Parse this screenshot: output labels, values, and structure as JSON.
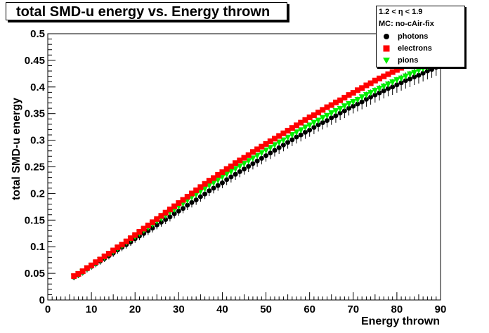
{
  "chart_data": {
    "type": "scatter",
    "title": "total SMD-u energy vs. Energy thrown",
    "xlabel": "Energy thrown",
    "ylabel": "total SMD-u energy",
    "xlim": [
      0,
      90
    ],
    "ylim": [
      0,
      0.5
    ],
    "x_ticks": [
      "0",
      "10",
      "20",
      "30",
      "40",
      "50",
      "60",
      "70",
      "80",
      "90"
    ],
    "y_ticks": [
      "0",
      "0.05",
      "0.1",
      "0.15",
      "0.2",
      "0.25",
      "0.3",
      "0.35",
      "0.4",
      "0.45",
      "0.5"
    ],
    "grid": false,
    "legend_position": "top-right",
    "legend_header": [
      "1.2 < η < 1.9",
      "MC: no-cAir-fix"
    ],
    "series": [
      {
        "name": "photons",
        "marker": "circle",
        "color": "#000000",
        "x": [
          6,
          7,
          8,
          9,
          10,
          11,
          12,
          13,
          14,
          15,
          16,
          17,
          18,
          19,
          20,
          21,
          22,
          23,
          24,
          25,
          26,
          27,
          28,
          29,
          30,
          31,
          32,
          33,
          34,
          35,
          36,
          37,
          38,
          39,
          40,
          41,
          42,
          43,
          44,
          45,
          46,
          47,
          48,
          49,
          50,
          51,
          52,
          53,
          54,
          55,
          56,
          57,
          58,
          59,
          60,
          61,
          62,
          63,
          64,
          65,
          66,
          67,
          68,
          69,
          70,
          71,
          72,
          73,
          74,
          75,
          76,
          77,
          78,
          79,
          80,
          81,
          82,
          83,
          84,
          85,
          86,
          87,
          88,
          89
        ],
        "y": [
          0.043,
          0.047,
          0.052,
          0.058,
          0.063,
          0.068,
          0.073,
          0.078,
          0.083,
          0.088,
          0.094,
          0.099,
          0.104,
          0.109,
          0.115,
          0.12,
          0.125,
          0.13,
          0.135,
          0.141,
          0.146,
          0.151,
          0.156,
          0.162,
          0.167,
          0.172,
          0.178,
          0.183,
          0.188,
          0.194,
          0.199,
          0.205,
          0.21,
          0.215,
          0.22,
          0.226,
          0.231,
          0.236,
          0.241,
          0.246,
          0.251,
          0.256,
          0.261,
          0.266,
          0.271,
          0.276,
          0.281,
          0.286,
          0.291,
          0.296,
          0.301,
          0.306,
          0.31,
          0.315,
          0.319,
          0.324,
          0.329,
          0.333,
          0.337,
          0.342,
          0.346,
          0.351,
          0.355,
          0.36,
          0.364,
          0.368,
          0.372,
          0.377,
          0.381,
          0.385,
          0.389,
          0.393,
          0.397,
          0.4,
          0.404,
          0.408,
          0.412,
          0.415,
          0.419,
          0.422,
          0.426,
          0.43,
          0.433,
          0.437
        ]
      },
      {
        "name": "electrons",
        "marker": "square",
        "color": "#ff0000",
        "x": [
          6,
          7,
          8,
          9,
          10,
          11,
          12,
          13,
          14,
          15,
          16,
          17,
          18,
          19,
          20,
          21,
          22,
          23,
          24,
          25,
          26,
          27,
          28,
          29,
          30,
          31,
          32,
          33,
          34,
          35,
          36,
          37,
          38,
          39,
          40,
          41,
          42,
          43,
          44,
          45,
          46,
          47,
          48,
          49,
          50,
          51,
          52,
          53,
          54,
          55,
          56,
          57,
          58,
          59,
          60,
          61,
          62,
          63,
          64,
          65,
          66,
          67,
          68,
          69,
          70,
          71,
          72,
          73,
          74,
          75,
          76,
          77,
          78,
          79,
          80,
          81,
          82,
          83,
          84,
          85,
          86,
          87,
          88,
          89
        ],
        "y": [
          0.045,
          0.049,
          0.054,
          0.06,
          0.065,
          0.071,
          0.076,
          0.082,
          0.087,
          0.093,
          0.099,
          0.104,
          0.11,
          0.116,
          0.122,
          0.128,
          0.134,
          0.14,
          0.146,
          0.152,
          0.158,
          0.164,
          0.17,
          0.176,
          0.182,
          0.188,
          0.194,
          0.2,
          0.206,
          0.212,
          0.218,
          0.224,
          0.229,
          0.235,
          0.24,
          0.246,
          0.251,
          0.257,
          0.262,
          0.267,
          0.272,
          0.278,
          0.283,
          0.288,
          0.293,
          0.298,
          0.303,
          0.308,
          0.313,
          0.318,
          0.323,
          0.328,
          0.333,
          0.338,
          0.343,
          0.347,
          0.352,
          0.357,
          0.362,
          0.366,
          0.371,
          0.375,
          0.38,
          0.385,
          0.389,
          0.394,
          0.398,
          0.403,
          0.407,
          0.412,
          0.416,
          0.42,
          0.424,
          0.428,
          0.432,
          0.436,
          0.44,
          0.443,
          0.447,
          0.45,
          0.453,
          0.456,
          0.459,
          0.462
        ]
      },
      {
        "name": "pions",
        "marker": "triangle-down",
        "color": "#00ee00",
        "x": [
          6,
          7,
          8,
          9,
          10,
          11,
          12,
          13,
          14,
          15,
          16,
          17,
          18,
          19,
          20,
          21,
          22,
          23,
          24,
          25,
          26,
          27,
          28,
          29,
          30,
          31,
          32,
          33,
          34,
          35,
          36,
          37,
          38,
          39,
          40,
          41,
          42,
          43,
          44,
          45,
          46,
          47,
          48,
          49,
          50,
          51,
          52,
          53,
          54,
          55,
          56,
          57,
          58,
          59,
          60,
          61,
          62,
          63,
          64,
          65,
          66,
          67,
          68,
          69,
          70,
          71,
          72,
          73,
          74,
          75,
          76,
          77,
          78,
          79,
          80,
          81,
          82,
          83,
          84,
          85,
          86,
          87,
          88,
          89
        ],
        "y": [
          0.044,
          0.048,
          0.053,
          0.059,
          0.064,
          0.069,
          0.075,
          0.08,
          0.086,
          0.091,
          0.097,
          0.102,
          0.108,
          0.114,
          0.119,
          0.125,
          0.131,
          0.136,
          0.142,
          0.148,
          0.153,
          0.159,
          0.165,
          0.17,
          0.176,
          0.181,
          0.187,
          0.193,
          0.198,
          0.204,
          0.209,
          0.215,
          0.22,
          0.225,
          0.231,
          0.236,
          0.241,
          0.246,
          0.251,
          0.256,
          0.261,
          0.266,
          0.271,
          0.276,
          0.281,
          0.286,
          0.291,
          0.296,
          0.3,
          0.305,
          0.31,
          0.315,
          0.319,
          0.324,
          0.328,
          0.333,
          0.337,
          0.342,
          0.346,
          0.351,
          0.355,
          0.359,
          0.364,
          0.368,
          0.372,
          0.376,
          0.381,
          0.385,
          0.389,
          0.393,
          0.397,
          0.401,
          0.405,
          0.409,
          0.413,
          0.416,
          0.42,
          0.424,
          0.427,
          0.431,
          0.434,
          0.438,
          0.441,
          0.444
        ]
      }
    ]
  }
}
